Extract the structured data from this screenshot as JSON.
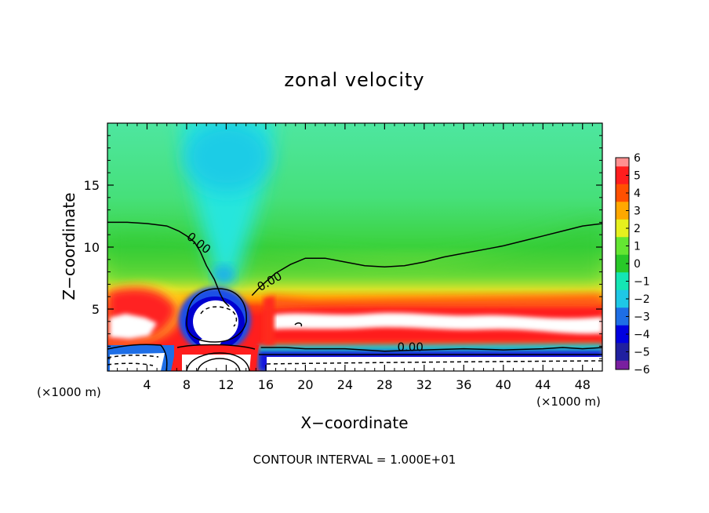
{
  "chart_data": {
    "type": "heatmap",
    "title": "zonal velocity",
    "xlabel": "X−coordinate",
    "ylabel": "Z−coordinate",
    "x_unit_left": "(×1000 m)",
    "x_unit_right": "(×1000 m)",
    "xlim": [
      0,
      50
    ],
    "ylim": [
      0,
      20
    ],
    "x_ticks": [
      4,
      8,
      12,
      16,
      20,
      24,
      28,
      32,
      36,
      40,
      44,
      48
    ],
    "x_tick_labels": [
      "4",
      "8",
      "12",
      "16",
      "20",
      "24",
      "28",
      "32",
      "36",
      "40",
      "44",
      "48"
    ],
    "y_ticks": [
      5,
      10,
      15
    ],
    "y_tick_labels": [
      "5",
      "10",
      "15"
    ],
    "colorbar": {
      "values": [
        -6,
        -5,
        -4,
        -3,
        -2,
        -1,
        0,
        1,
        2,
        3,
        4,
        5,
        6
      ],
      "labels": [
        "−6",
        "−5",
        "−4",
        "−3",
        "−2",
        "−1",
        "0",
        "1",
        "2",
        "3",
        "4",
        "5",
        "6"
      ],
      "colors": [
        "#7a1fa0",
        "#2020a0",
        "#0000e0",
        "#1e6ee6",
        "#1ec8e6",
        "#14e6b4",
        "#28c828",
        "#64e632",
        "#e6f01e",
        "#ffa800",
        "#ff5000",
        "#ff1e1e",
        "#ff9090"
      ]
    },
    "contour_labels": [
      {
        "text": "0.00",
        "x": 9.2,
        "z": 10.3,
        "angle": 38
      },
      {
        "text": "0.00",
        "x": 16.4,
        "z": 7.2,
        "angle": -30
      },
      {
        "text": "0.00",
        "x": 30.6,
        "z": 1.9,
        "angle": 0
      }
    ],
    "zero_contour_upper": {
      "x": [
        0,
        2,
        4,
        6,
        7.2,
        8.0,
        8.8,
        9.4,
        10.0,
        10.8,
        11.4,
        11.8,
        12.3
      ],
      "z": [
        12.0,
        12.0,
        11.9,
        11.7,
        11.3,
        10.9,
        10.4,
        9.6,
        8.5,
        7.4,
        6.2,
        5.6,
        5.2
      ]
    },
    "zero_contour_right": {
      "x": [
        14.6,
        15.2,
        16.0,
        17.0,
        18.5,
        20,
        22,
        24,
        26,
        28,
        30,
        32,
        34,
        36,
        38,
        40,
        42,
        44,
        46,
        48,
        50
      ],
      "z": [
        6.1,
        6.6,
        7.2,
        7.9,
        8.6,
        9.1,
        9.1,
        8.8,
        8.5,
        8.4,
        8.5,
        8.8,
        9.2,
        9.5,
        9.8,
        10.1,
        10.5,
        10.9,
        11.3,
        11.7,
        11.9
      ]
    },
    "zero_contour_lower": {
      "x": [
        15.5,
        18,
        20,
        24,
        28,
        32,
        36,
        40,
        44,
        46,
        48,
        50
      ],
      "z": [
        1.9,
        1.9,
        1.8,
        1.8,
        1.6,
        1.7,
        1.8,
        1.7,
        1.8,
        1.9,
        1.8,
        1.9
      ]
    },
    "contour_interval_text": "CONTOUR INTERVAL = 1.000E+01"
  }
}
